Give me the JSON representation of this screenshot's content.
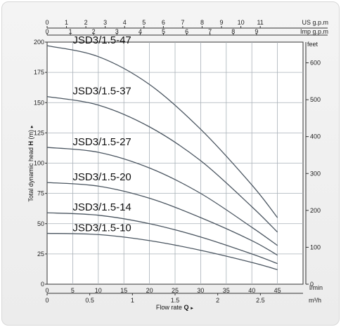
{
  "chart_data": {
    "type": "line",
    "x_label_lpm": "l/min",
    "x_ticks_lpm": [
      0,
      5,
      10,
      15,
      20,
      25,
      30,
      35,
      40,
      45
    ],
    "xlim_lpm": [
      0,
      50
    ],
    "x_label_m3h": "m³/h",
    "x_ticks_m3h": [
      "0",
      "0.5",
      "1",
      "1.5",
      "2",
      "2.5"
    ],
    "x_label_usgpm": "US g.p.m",
    "x_ticks_usgpm": [
      0,
      1,
      2,
      3,
      4,
      5,
      6,
      7,
      8,
      9,
      10,
      11
    ],
    "x_label_impgpm": "Imp g.p.m",
    "x_ticks_impgpm": [
      0,
      1,
      2,
      3,
      4,
      5,
      6,
      7,
      8,
      9
    ],
    "xlabel_prefix": "Flow rate ",
    "xlabel_symbol": "Q",
    "xlabel_arrow": "►",
    "ylabel_prefix": "Total dynamic head ",
    "ylabel_symbol": "H",
    "ylabel_unit": " (m)",
    "ylabel_arrow": "►",
    "ylim": [
      0,
      200
    ],
    "y_ticks": [
      0,
      25,
      50,
      75,
      100,
      125,
      150,
      175,
      200
    ],
    "y2_label": "feet",
    "y2_ticks": [
      0,
      100,
      200,
      300,
      400,
      500,
      600
    ],
    "grid": true,
    "series": [
      {
        "name": "JSD3/1.5-47",
        "x": [
          0,
          10,
          20,
          30,
          40,
          45
        ],
        "values": [
          197,
          188,
          165,
          128,
          82,
          55
        ]
      },
      {
        "name": "JSD3/1.5-37",
        "x": [
          0,
          10,
          20,
          30,
          40,
          45
        ],
        "values": [
          155,
          148,
          130,
          102,
          64,
          43
        ]
      },
      {
        "name": "JSD3/1.5-27",
        "x": [
          0,
          10,
          20,
          30,
          40,
          45
        ],
        "values": [
          113,
          109,
          96,
          75,
          47,
          32
        ]
      },
      {
        "name": "JSD3/1.5-20",
        "x": [
          0,
          10,
          20,
          30,
          40,
          45
        ],
        "values": [
          84,
          81,
          71,
          55,
          36,
          24
        ]
      },
      {
        "name": "JSD3/1.5-14",
        "x": [
          0,
          10,
          20,
          30,
          40,
          45
        ],
        "values": [
          59,
          57,
          50,
          39,
          25,
          17
        ]
      },
      {
        "name": "JSD3/1.5-10",
        "x": [
          0,
          10,
          20,
          30,
          40,
          45
        ],
        "values": [
          42,
          41,
          36,
          28,
          18,
          12
        ]
      }
    ],
    "line_color": "#4a5560",
    "grid_color": "#a9b1b8",
    "plot_bg": "#ffffff"
  }
}
